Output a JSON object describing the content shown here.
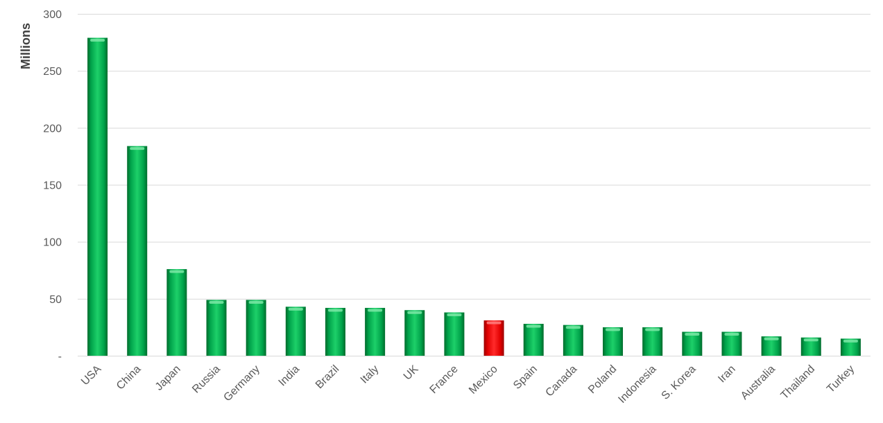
{
  "chart_data": {
    "type": "bar",
    "title": "",
    "xlabel": "",
    "ylabel": "Millions",
    "ylim": [
      0,
      300
    ],
    "yticks": [
      0,
      50,
      100,
      150,
      200,
      250,
      300
    ],
    "ytick_labels": [
      "-",
      "50",
      "100",
      "150",
      "200",
      "250",
      "300"
    ],
    "grid": true,
    "legend": "none",
    "categories": [
      "USA",
      "China",
      "Japan",
      "Russia",
      "Germany",
      "India",
      "Brazil",
      "Italy",
      "UK",
      "France",
      "Mexico",
      "Spain",
      "Canada",
      "Poland",
      "Indonesia",
      "S. Korea",
      "Iran",
      "Australia",
      "Thailand",
      "Turkey"
    ],
    "series": [
      {
        "values": [
          279,
          184,
          76,
          49,
          49,
          43,
          42,
          42,
          40,
          38,
          31,
          28,
          27,
          25,
          25,
          21,
          21,
          17,
          16,
          15
        ]
      }
    ],
    "colors": {
      "default_bar": "#00b050",
      "highlight_bar": "#ff0000",
      "highlight_category": "Mexico"
    }
  }
}
